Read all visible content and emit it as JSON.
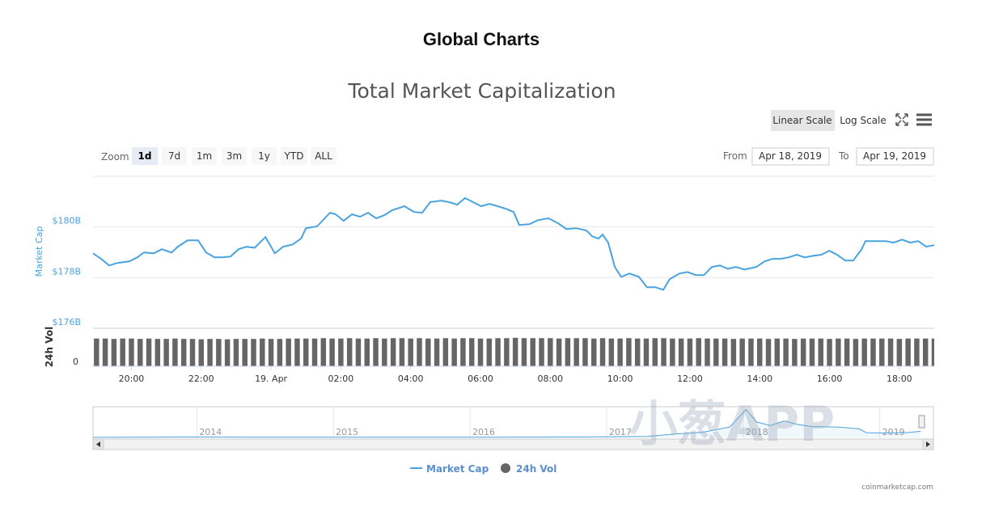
{
  "title": "Global Charts",
  "controls": {
    "scale_buttons": [
      "Linear Scale",
      "Log Scale"
    ],
    "zoom_label": "Zoom",
    "zoom_buttons": [
      "1d",
      "7d",
      "1m",
      "3m",
      "1y",
      "YTD",
      "ALL"
    ],
    "from_label": "From",
    "from": "Apr 18, 2019",
    "to_label": "To",
    "to": "Apr 19, 2019"
  },
  "chart_data": [
    {
      "type": "line",
      "title": "Total Market Capitalization",
      "y_label": "Market Cap",
      "x": [
        18.9,
        19.13,
        19.36,
        19.6,
        19.94,
        20.17,
        20.36,
        20.64,
        20.87,
        21.15,
        21.33,
        21.61,
        21.91,
        22.14,
        22.38,
        22.61,
        22.84,
        23.07,
        23.3,
        23.53,
        23.84,
        24.11,
        24.35,
        24.62,
        24.86,
        25.0,
        25.32,
        25.69,
        25.85,
        26.08,
        26.32,
        26.55,
        26.78,
        27.01,
        27.24,
        27.47,
        27.82,
        28.1,
        28.33,
        28.56,
        28.87,
        29.1,
        29.33,
        29.56,
        29.79,
        30.02,
        30.26,
        30.49,
        30.72,
        30.95,
        31.11,
        31.41,
        31.65,
        31.95,
        32.23,
        32.46,
        32.74,
        33.04,
        33.2,
        33.38,
        33.5,
        33.66,
        33.85,
        34.03,
        34.27,
        34.54,
        34.77,
        35.01,
        35.24,
        35.42,
        35.7,
        35.93,
        36.17,
        36.4,
        36.63,
        36.86,
        37.09,
        37.32,
        37.56,
        37.9,
        38.14,
        38.37,
        38.6,
        38.83,
        39.06,
        39.29,
        39.53,
        39.76,
        39.99,
        40.22,
        40.45,
        40.68,
        40.92,
        41.03,
        41.38,
        41.61,
        41.84,
        42.08,
        42.31,
        42.54,
        42.77,
        43.0
      ],
      "series": [
        {
          "name": "Market Cap",
          "color": "#4aa3df",
          "values": [
            178.96,
            178.74,
            178.48,
            178.58,
            178.64,
            178.8,
            178.99,
            178.96,
            179.12,
            178.99,
            179.22,
            179.47,
            179.47,
            178.99,
            178.8,
            178.8,
            178.83,
            179.12,
            179.22,
            179.18,
            179.6,
            178.96,
            179.22,
            179.31,
            179.54,
            179.95,
            180.02,
            180.56,
            180.5,
            180.24,
            180.5,
            180.4,
            180.56,
            180.34,
            180.46,
            180.66,
            180.82,
            180.59,
            180.56,
            180.98,
            181.04,
            180.98,
            180.88,
            181.14,
            180.98,
            180.82,
            180.91,
            180.82,
            180.72,
            180.59,
            180.08,
            180.11,
            180.27,
            180.34,
            180.14,
            179.92,
            179.95,
            179.86,
            179.63,
            179.54,
            179.7,
            179.38,
            178.42,
            178.03,
            178.16,
            178.03,
            177.62,
            177.62,
            177.52,
            177.94,
            178.16,
            178.22,
            178.1,
            178.1,
            178.42,
            178.48,
            178.35,
            178.42,
            178.32,
            178.42,
            178.64,
            178.74,
            178.74,
            178.8,
            178.9,
            178.8,
            178.86,
            178.9,
            179.06,
            178.9,
            178.67,
            178.67,
            179.12,
            179.44,
            179.44,
            179.44,
            179.38,
            179.5,
            179.38,
            179.44,
            179.22,
            179.28
          ]
        }
      ],
      "xlim": [
        18.9,
        43.0
      ],
      "ylim": [
        176,
        182
      ],
      "yticks": [
        {
          "value": 176,
          "label": "$176B"
        },
        {
          "value": 178,
          "label": "$178B"
        },
        {
          "value": 180,
          "label": "$180B"
        }
      ],
      "grid": true
    },
    {
      "type": "bar",
      "y_label": "24h Vol",
      "x": [
        19,
        19.25,
        19.5,
        19.75,
        20,
        20.25,
        20.5,
        20.75,
        21,
        21.25,
        21.5,
        21.75,
        22,
        22.25,
        22.5,
        22.75,
        23,
        23.25,
        23.5,
        23.75,
        24,
        24.25,
        24.5,
        24.75,
        25,
        25.25,
        25.5,
        25.75,
        26,
        26.25,
        26.5,
        26.75,
        27,
        27.25,
        27.5,
        27.75,
        28,
        28.25,
        28.5,
        28.75,
        29,
        29.25,
        29.5,
        29.75,
        30,
        30.25,
        30.5,
        30.75,
        31,
        31.25,
        31.5,
        31.75,
        32,
        32.25,
        32.5,
        32.75,
        33,
        33.25,
        33.5,
        33.75,
        34,
        34.25,
        34.5,
        34.75,
        35,
        35.25,
        35.5,
        35.75,
        36,
        36.25,
        36.5,
        36.75,
        37,
        37.25,
        37.5,
        37.75,
        38,
        38.25,
        38.5,
        38.75,
        39,
        39.25,
        39.5,
        39.75,
        40,
        40.25,
        40.5,
        40.75,
        41,
        41.25,
        41.5,
        41.75,
        42,
        42.25,
        42.5,
        42.75,
        43
      ],
      "series": [
        {
          "name": "24h Vol",
          "color": "#666666",
          "values": [
            0.73,
            0.73,
            0.72,
            0.73,
            0.73,
            0.72,
            0.73,
            0.72,
            0.72,
            0.73,
            0.72,
            0.72,
            0.71,
            0.72,
            0.72,
            0.71,
            0.72,
            0.72,
            0.72,
            0.73,
            0.72,
            0.72,
            0.73,
            0.73,
            0.73,
            0.73,
            0.74,
            0.73,
            0.73,
            0.74,
            0.73,
            0.73,
            0.74,
            0.73,
            0.74,
            0.74,
            0.73,
            0.74,
            0.73,
            0.73,
            0.74,
            0.73,
            0.74,
            0.74,
            0.73,
            0.73,
            0.74,
            0.74,
            0.75,
            0.74,
            0.74,
            0.74,
            0.74,
            0.73,
            0.74,
            0.74,
            0.74,
            0.73,
            0.74,
            0.73,
            0.73,
            0.74,
            0.73,
            0.73,
            0.74,
            0.74,
            0.73,
            0.73,
            0.73,
            0.74,
            0.73,
            0.73,
            0.73,
            0.72,
            0.73,
            0.73,
            0.73,
            0.72,
            0.73,
            0.73,
            0.72,
            0.73,
            0.73,
            0.73,
            0.72,
            0.73,
            0.73,
            0.72,
            0.73,
            0.73,
            0.73,
            0.73,
            0.72,
            0.73,
            0.73,
            0.73,
            0.73
          ]
        }
      ],
      "xlim": [
        18.9,
        43.0
      ],
      "ylim": [
        0,
        1
      ],
      "yticks": [
        0
      ],
      "xticks": [
        {
          "value": 20,
          "label": "20:00"
        },
        {
          "value": 22,
          "label": "22:00"
        },
        {
          "value": 24,
          "label": "19. Apr"
        },
        {
          "value": 26,
          "label": "02:00"
        },
        {
          "value": 28,
          "label": "04:00"
        },
        {
          "value": 30,
          "label": "06:00"
        },
        {
          "value": 32,
          "label": "08:00"
        },
        {
          "value": 34,
          "label": "10:00"
        },
        {
          "value": 36,
          "label": "12:00"
        },
        {
          "value": 38,
          "label": "14:00"
        },
        {
          "value": 40,
          "label": "16:00"
        },
        {
          "value": 42,
          "label": "18:00"
        }
      ]
    },
    {
      "type": "area",
      "color": "#4aa3df",
      "x": [
        2013.24,
        2013.9,
        2014.5,
        2015.0,
        2015.5,
        2016.0,
        2016.5,
        2017.0,
        2017.3,
        2017.5,
        2017.7,
        2017.9,
        2017.97,
        2018.02,
        2018.1,
        2018.2,
        2018.3,
        2018.4,
        2018.5,
        2018.7,
        2018.85,
        2018.9,
        2019.0,
        2019.2,
        2019.3
      ],
      "values": [
        2,
        12,
        8,
        5,
        4,
        7,
        10,
        18,
        30,
        100,
        150,
        300,
        600,
        820,
        450,
        350,
        480,
        380,
        320,
        300,
        250,
        140,
        130,
        140,
        180
      ],
      "xlim": [
        2013.24,
        2019.34
      ],
      "ylim": [
        0,
        900
      ],
      "xticks": [
        2014,
        2015,
        2016,
        2017,
        2018,
        2019
      ]
    }
  ],
  "credits": "coinmarketcap.com",
  "watermark": "小葱APP"
}
